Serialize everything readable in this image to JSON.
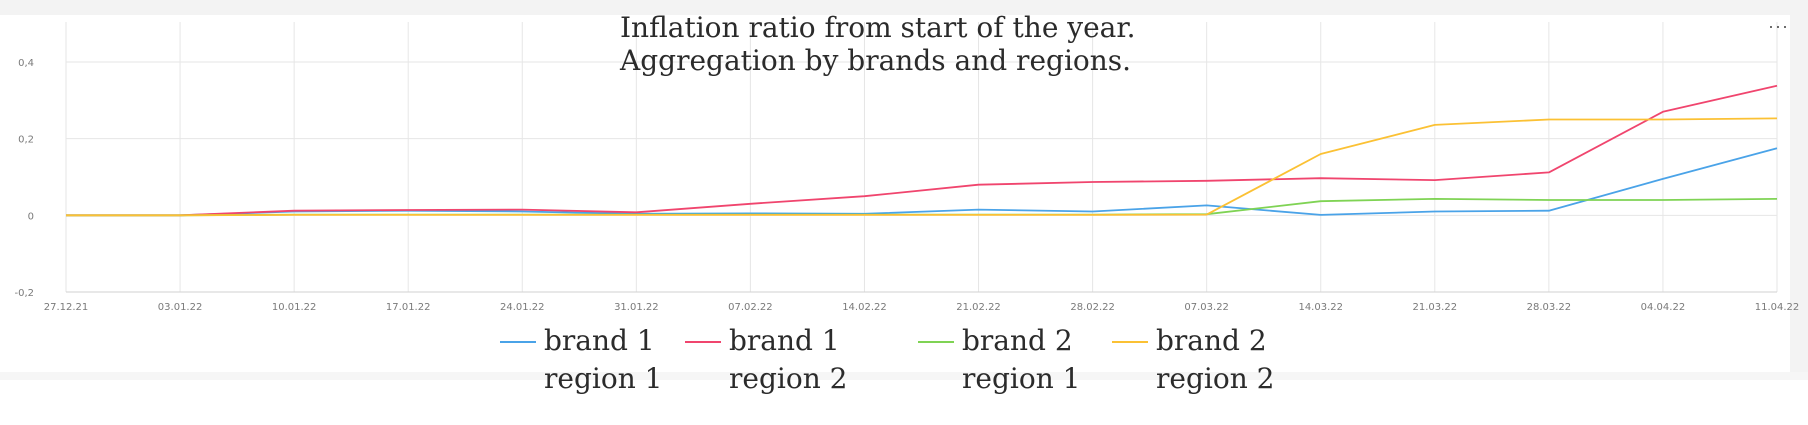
{
  "menu": {
    "icon": "more-dots-icon",
    "label": "···"
  },
  "chart_data": {
    "type": "line",
    "title_lines": [
      "Inflation ratio from start of the year.",
      "Aggregation by brands and regions."
    ],
    "xlabel": "",
    "ylabel": "",
    "x": [
      "27.12.21",
      "03.01.22",
      "10.01.22",
      "17.01.22",
      "24.01.22",
      "31.01.22",
      "07.02.22",
      "14.02.22",
      "21.02.22",
      "28.02.22",
      "07.03.22",
      "14.03.22",
      "21.03.22",
      "28.03.22",
      "04.04.22",
      "11.04.22"
    ],
    "ylim": [
      -0.2,
      0.4
    ],
    "yticks": [
      -0.2,
      0,
      0.2,
      0.4
    ],
    "ytick_labels": [
      "-0,2",
      "0",
      "0,2",
      "0,4"
    ],
    "grid": true,
    "legend_position": "bottom",
    "series": [
      {
        "name_lines": [
          "brand 1",
          "region 1"
        ],
        "color": "#4aa3e8",
        "values": [
          0,
          0,
          0.01,
          0.012,
          0.01,
          0.004,
          0.005,
          0.004,
          0.015,
          0.01,
          0.026,
          0.001,
          0.01,
          0.012,
          0.095,
          0.175
        ]
      },
      {
        "name_lines": [
          "brand 1",
          "region 2"
        ],
        "color": "#f0456e",
        "values": [
          0,
          0,
          0.012,
          0.014,
          0.015,
          0.008,
          0.03,
          0.05,
          0.08,
          0.087,
          0.09,
          0.097,
          0.092,
          0.112,
          0.27,
          0.338
        ]
      },
      {
        "name_lines": [
          "brand 2",
          "region 1"
        ],
        "color": "#7fd354",
        "values": [
          0,
          0,
          0.002,
          0.002,
          0.002,
          0.002,
          0.002,
          0.002,
          0.002,
          0.002,
          0.003,
          0.037,
          0.043,
          0.04,
          0.04,
          0.043
        ]
      },
      {
        "name_lines": [
          "brand 2",
          "region 2"
        ],
        "color": "#fbc134",
        "values": [
          0,
          0,
          0.001,
          0.001,
          0.001,
          0.001,
          0.001,
          0.001,
          0.001,
          0.001,
          0.002,
          0.16,
          0.236,
          0.25,
          0.25,
          0.253
        ]
      }
    ]
  }
}
